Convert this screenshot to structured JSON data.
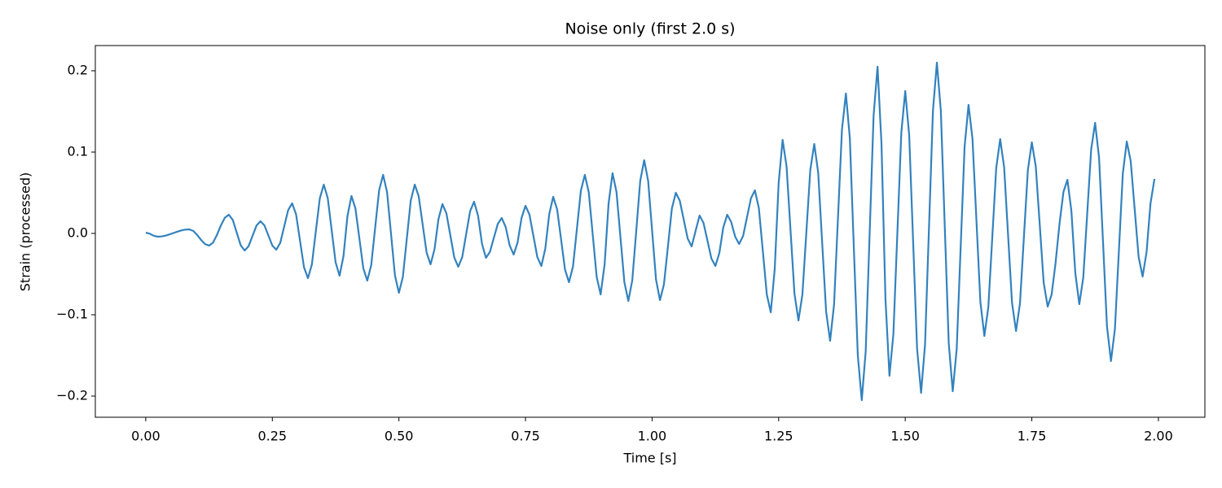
{
  "chart_data": {
    "type": "line",
    "title": "Noise only (first 2.0 s)",
    "x_label": "Time [s]",
    "y_label": "Strain (processed)",
    "color": "#3382be",
    "xlim": [
      -0.0996,
      2.0918
    ],
    "ylim": [
      -0.226,
      0.231
    ],
    "xticks": [
      {
        "value": 0,
        "label": "0.00"
      },
      {
        "value": 0.25,
        "label": "0.25"
      },
      {
        "value": 0.5,
        "label": "0.50"
      },
      {
        "value": 0.75,
        "label": "0.75"
      },
      {
        "value": 1,
        "label": "1.00"
      },
      {
        "value": 1.25,
        "label": "1.25"
      },
      {
        "value": 1.5,
        "label": "1.50"
      },
      {
        "value": 1.75,
        "label": "1.75"
      },
      {
        "value": 2,
        "label": "2.00"
      }
    ],
    "yticks": [
      {
        "value": -0.2,
        "label": "−0.2"
      },
      {
        "value": -0.1,
        "label": "−0.1"
      },
      {
        "value": 0,
        "label": "0.0"
      },
      0.1,
      0.2
    ],
    "x": [
      0,
      0.0078,
      0.0156,
      0.0234,
      0.0313,
      0.0391,
      0.0469,
      0.0547,
      0.0625,
      0.0703,
      0.0781,
      0.0859,
      0.0938,
      0.1016,
      0.1094,
      0.1172,
      0.125,
      0.1328,
      0.1406,
      0.1484,
      0.1563,
      0.1641,
      0.1719,
      0.1797,
      0.1875,
      0.1953,
      0.2031,
      0.2109,
      0.2188,
      0.2266,
      0.2344,
      0.2422,
      0.25,
      0.2578,
      0.2656,
      0.2734,
      0.2813,
      0.2891,
      0.2969,
      0.3047,
      0.3125,
      0.3203,
      0.3281,
      0.3359,
      0.3438,
      0.3516,
      0.3594,
      0.3672,
      0.375,
      0.3828,
      0.3906,
      0.3984,
      0.4063,
      0.4141,
      0.4219,
      0.4297,
      0.4375,
      0.4453,
      0.4531,
      0.4609,
      0.4688,
      0.4766,
      0.4844,
      0.4922,
      0.5,
      0.5078,
      0.5156,
      0.5234,
      0.5313,
      0.5391,
      0.5469,
      0.5547,
      0.5625,
      0.5703,
      0.5781,
      0.5859,
      0.5938,
      0.6016,
      0.6094,
      0.6172,
      0.625,
      0.6328,
      0.6406,
      0.6484,
      0.6563,
      0.6641,
      0.6719,
      0.6797,
      0.6875,
      0.6953,
      0.7031,
      0.7109,
      0.7188,
      0.7266,
      0.7344,
      0.7422,
      0.75,
      0.7578,
      0.7656,
      0.7734,
      0.7813,
      0.7891,
      0.7969,
      0.8047,
      0.8125,
      0.8203,
      0.8281,
      0.8359,
      0.8438,
      0.8516,
      0.8594,
      0.8672,
      0.875,
      0.8828,
      0.8906,
      0.8984,
      0.9063,
      0.9141,
      0.9219,
      0.9297,
      0.9375,
      0.9453,
      0.9531,
      0.9609,
      0.9688,
      0.9766,
      0.9844,
      0.9922,
      1,
      1.0078,
      1.0156,
      1.0234,
      1.0313,
      1.0391,
      1.0469,
      1.0547,
      1.0625,
      1.0703,
      1.0781,
      1.0859,
      1.0938,
      1.1016,
      1.1094,
      1.1172,
      1.125,
      1.1328,
      1.1406,
      1.1484,
      1.1563,
      1.1641,
      1.1719,
      1.1797,
      1.1875,
      1.1953,
      1.2031,
      1.2109,
      1.2188,
      1.2266,
      1.2344,
      1.2422,
      1.25,
      1.2578,
      1.2656,
      1.2734,
      1.2813,
      1.2891,
      1.2969,
      1.3047,
      1.3125,
      1.3203,
      1.3281,
      1.3359,
      1.3438,
      1.3516,
      1.3594,
      1.3672,
      1.375,
      1.3828,
      1.3906,
      1.3984,
      1.4063,
      1.4141,
      1.4219,
      1.4297,
      1.4375,
      1.4453,
      1.4531,
      1.4609,
      1.4688,
      1.4766,
      1.4844,
      1.4922,
      1.5,
      1.5078,
      1.5156,
      1.5234,
      1.5313,
      1.5391,
      1.5469,
      1.5547,
      1.5625,
      1.5703,
      1.5781,
      1.5859,
      1.5938,
      1.6016,
      1.6094,
      1.6172,
      1.625,
      1.6328,
      1.6406,
      1.6484,
      1.6563,
      1.6641,
      1.6719,
      1.6797,
      1.6875,
      1.6953,
      1.7031,
      1.7109,
      1.7188,
      1.7266,
      1.7344,
      1.7422,
      1.75,
      1.7578,
      1.7656,
      1.7734,
      1.7813,
      1.7891,
      1.7969,
      1.8047,
      1.8125,
      1.8203,
      1.8281,
      1.8359,
      1.8438,
      1.8516,
      1.8594,
      1.8672,
      1.875,
      1.8828,
      1.8906,
      1.8984,
      1.9063,
      1.9141,
      1.9219,
      1.9297,
      1.9375,
      1.9453,
      1.9531,
      1.9609,
      1.9688,
      1.9766,
      1.9844,
      1.9922
    ],
    "values": [
      0.001,
      -0.0003,
      -0.0028,
      -0.004,
      -0.0037,
      -0.0027,
      -0.0012,
      0.0005,
      0.0022,
      0.0037,
      0.0047,
      0.005,
      0.0031,
      -0.0019,
      -0.0081,
      -0.0131,
      -0.015,
      -0.0114,
      -0.0019,
      0.0099,
      0.0194,
      0.023,
      0.0166,
      0.001,
      -0.0146,
      -0.021,
      -0.0157,
      -0.003,
      0.0097,
      0.015,
      0.0099,
      -0.0025,
      -0.0149,
      -0.02,
      -0.0117,
      0.0085,
      0.0287,
      0.037,
      0.0235,
      -0.009,
      -0.0415,
      -0.055,
      -0.0382,
      0.0025,
      0.0432,
      0.06,
      0.0436,
      0.004,
      -0.0356,
      -0.052,
      -0.0275,
      0.0215,
      0.046,
      0.0308,
      -0.006,
      -0.0428,
      -0.058,
      -0.039,
      0.007,
      0.053,
      0.072,
      0.0508,
      -0.0005,
      -0.0518,
      -0.073,
      -0.0535,
      -0.0065,
      0.0405,
      0.06,
      0.0456,
      0.011,
      -0.0236,
      -0.038,
      -0.0195,
      0.0175,
      0.036,
      0.0247,
      -0.0025,
      -0.0297,
      -0.041,
      -0.0293,
      -0.001,
      0.0273,
      0.039,
      0.0218,
      -0.0128,
      -0.03,
      -0.0228,
      -0.0055,
      0.0118,
      0.019,
      0.0078,
      -0.0148,
      -0.026,
      -0.011,
      0.019,
      0.034,
      0.0232,
      -0.003,
      -0.0292,
      -0.04,
      -0.0188,
      0.0238,
      0.045,
      0.0296,
      -0.0075,
      -0.0446,
      -0.06,
      -0.0407,
      0.006,
      0.0527,
      0.072,
      0.0505,
      -0.0015,
      -0.0535,
      -0.075,
      -0.0378,
      0.0368,
      0.074,
      0.051,
      -0.0045,
      -0.06,
      -0.083,
      -0.0577,
      0.0035,
      0.0647,
      0.09,
      0.0648,
      0.004,
      -0.0568,
      -0.082,
      -0.0627,
      -0.016,
      0.0307,
      0.05,
      0.0403,
      0.017,
      -0.0063,
      -0.016,
      0.003,
      0.022,
      0.0129,
      -0.009,
      -0.0309,
      -0.04,
      -0.0243,
      0.0073,
      0.023,
      0.014,
      -0.004,
      -0.013,
      -0.0033,
      0.02,
      0.0433,
      0.053,
      0.031,
      -0.022,
      -0.075,
      -0.097,
      -0.044,
      0.062,
      0.115,
      0.0825,
      0.004,
      -0.0745,
      -0.107,
      -0.0752,
      0.0015,
      0.0782,
      0.11,
      0.0746,
      -0.011,
      -0.0966,
      -0.132,
      -0.0875,
      0.02,
      0.1275,
      0.172,
      0.1168,
      -0.0165,
      -0.1498,
      -0.205,
      -0.145,
      0,
      0.145,
      0.205,
      0.11,
      -0.08,
      -0.175,
      -0.1237,
      0,
      0.1237,
      0.175,
      0.1207,
      -0.0105,
      -0.1417,
      -0.196,
      -0.1365,
      0.007,
      0.1505,
      0.21,
      0.1508,
      0.008,
      -0.1348,
      -0.194,
      -0.1424,
      -0.018,
      0.1064,
      0.158,
      0.1164,
      0.016,
      -0.0844,
      -0.126,
      -0.0906,
      -0.005,
      0.0806,
      0.116,
      0.0814,
      -0.002,
      -0.0854,
      -0.12,
      -0.086,
      -0.004,
      0.078,
      0.112,
      0.0824,
      0.011,
      -0.0604,
      -0.09,
      -0.0751,
      -0.0361,
      0.0121,
      0.0511,
      0.066,
      0.0278,
      -0.0488,
      -0.087,
      -0.0543,
      0.0245,
      0.1033,
      0.136,
      0.0931,
      -0.0105,
      -0.1141,
      -0.157,
      -0.1175,
      -0.022,
      0.0735,
      0.113,
      0.0887,
      0.03,
      -0.0287,
      -0.053,
      -0.023,
      0.037,
      0.067
    ]
  }
}
